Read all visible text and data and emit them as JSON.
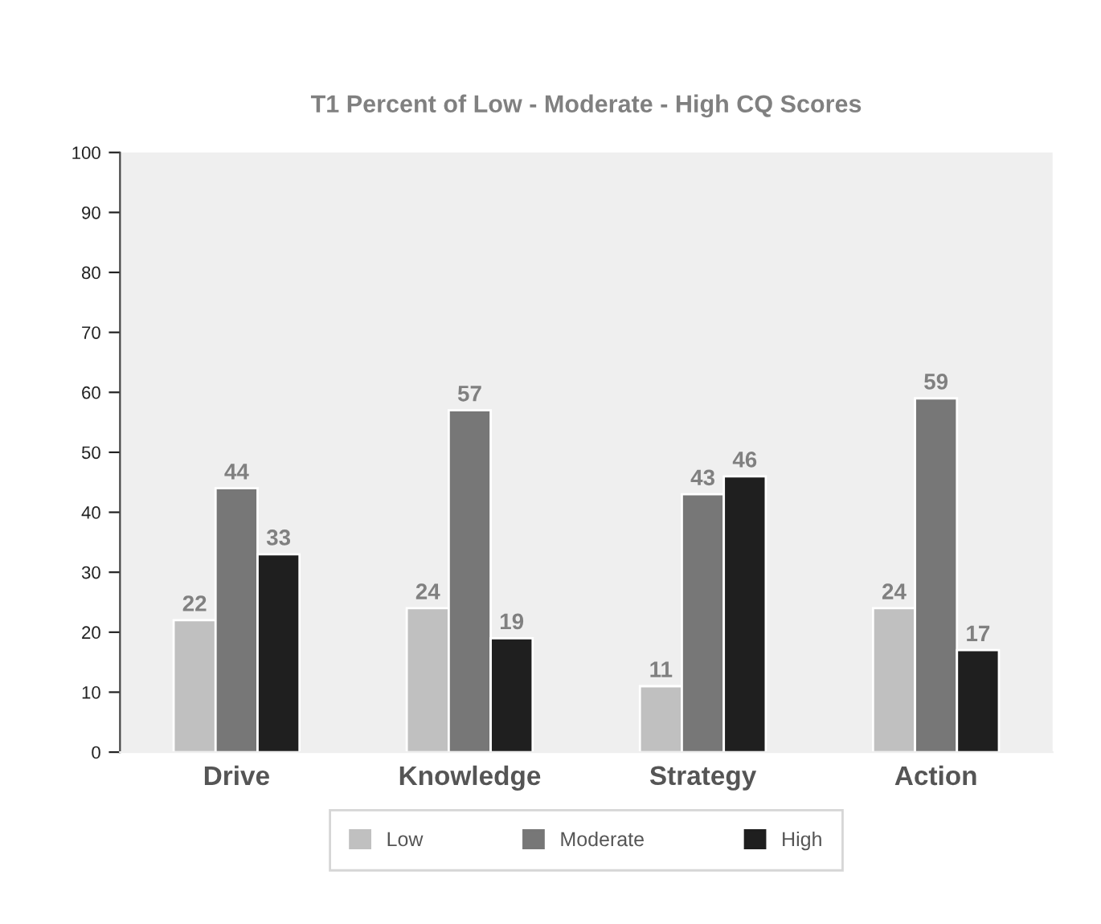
{
  "chart_data": {
    "type": "bar",
    "title": "T1 Percent of Low - Moderate - High CQ Scores",
    "categories": [
      "Drive",
      "Knowledge",
      "Strategy",
      "Action"
    ],
    "series": [
      {
        "name": "Low",
        "color": "#c0c0c0",
        "values": [
          22,
          24,
          11,
          24
        ]
      },
      {
        "name": "Moderate",
        "color": "#777777",
        "values": [
          44,
          57,
          43,
          59
        ]
      },
      {
        "name": "High",
        "color": "#1f1f1f",
        "values": [
          33,
          19,
          46,
          17
        ]
      }
    ],
    "ylim": [
      0,
      100
    ],
    "yticks": [
      0,
      10,
      20,
      30,
      40,
      50,
      60,
      70,
      80,
      90,
      100
    ],
    "data_labels": true,
    "grid": false,
    "legend": "bottom"
  }
}
